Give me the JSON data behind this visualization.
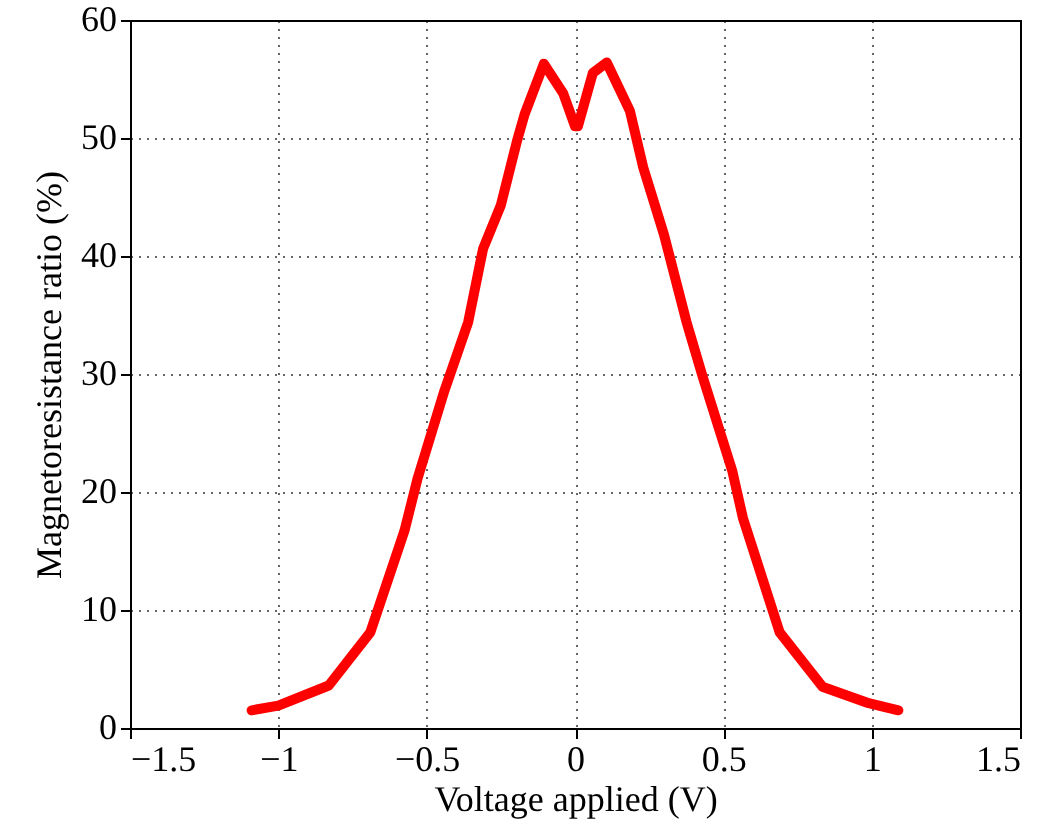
{
  "chart_data": {
    "type": "line",
    "xlabel": "Voltage applied (V)",
    "ylabel": "Magnetoresistance ratio (%)",
    "xlim": [
      -1.5,
      1.5
    ],
    "ylim": [
      0,
      60
    ],
    "xticks": [
      -1.5,
      -1,
      -0.5,
      0,
      0.5,
      1,
      1.5
    ],
    "yticks": [
      0,
      10,
      20,
      30,
      40,
      50,
      60
    ],
    "grid": true,
    "line_style": "solid",
    "series": [
      {
        "color": "#ff0000",
        "x": [
          -1.09,
          -1.0,
          -0.83,
          -0.69,
          -0.575,
          -0.53,
          -0.44,
          -0.36,
          -0.31,
          -0.25,
          -0.195,
          -0.17,
          -0.105,
          -0.04,
          0,
          0.01,
          0.06,
          0.107,
          0.185,
          0.23,
          0.3,
          0.376,
          0.43,
          0.53,
          0.566,
          0.69,
          0.834,
          0.99,
          1.09
        ],
        "values": [
          1.5,
          1.9,
          3.6,
          8.1,
          16.7,
          21.2,
          28.6,
          34.4,
          40.6,
          44.3,
          49.8,
          52,
          56.3,
          53.8,
          51,
          51,
          55.5,
          56.4,
          52.3,
          47.5,
          41.8,
          34.4,
          29.8,
          21.8,
          17.8,
          8.1,
          3.5,
          2.1,
          1.5
        ]
      }
    ]
  }
}
